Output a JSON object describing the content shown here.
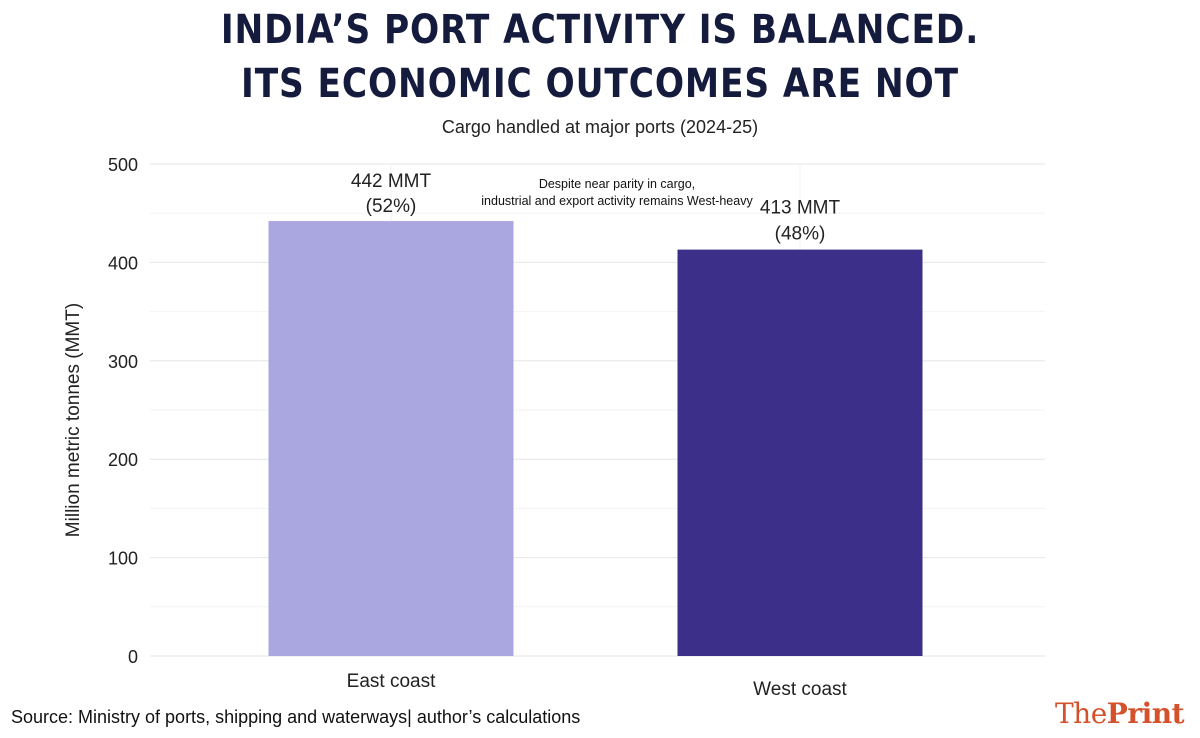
{
  "title_line1": "INDIA’S PORT ACTIVITY IS BALANCED.",
  "title_line2": "ITS ECONOMIC OUTCOMES ARE NOT",
  "subtitle": "Cargo handled at major ports (2024-25)",
  "source": "Source: Ministry of ports, shipping and waterways| author’s calculations",
  "logo": {
    "part1": "The",
    "part2": "Print"
  },
  "colors": {
    "east": "#aaa6df",
    "west": "#3c2f8a",
    "logo": "#d4512c"
  },
  "chart_data": {
    "type": "bar",
    "categories": [
      "East coast",
      "West coast"
    ],
    "values": [
      442,
      413
    ],
    "value_labels": [
      [
        "442 MMT",
        "(52%)"
      ],
      [
        "413 MMT",
        "(48%)"
      ]
    ],
    "annotation": [
      "Despite near parity in cargo,",
      "industrial and export activity remains West-heavy"
    ],
    "ylabel": "Million metric tonnes (MMT)",
    "xlabel": "",
    "ylim": [
      0,
      500
    ],
    "yticks": [
      0,
      100,
      200,
      300,
      400,
      500
    ],
    "grid": true,
    "legend": "none"
  }
}
